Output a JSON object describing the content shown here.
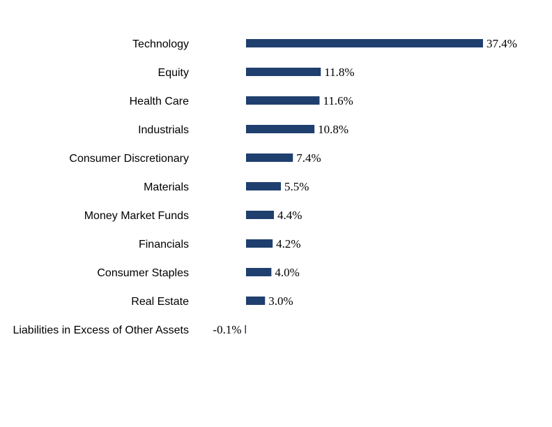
{
  "chart_data": {
    "type": "bar",
    "orientation": "horizontal",
    "categories": [
      "Technology",
      "Equity",
      "Health Care",
      "Industrials",
      "Consumer Discretionary",
      "Materials",
      "Money Market Funds",
      "Financials",
      "Consumer Staples",
      "Real Estate",
      "Liabilities in Excess of Other Assets"
    ],
    "values": [
      37.4,
      11.8,
      11.6,
      10.8,
      7.4,
      5.5,
      4.4,
      4.2,
      4.0,
      3.0,
      -0.1
    ],
    "value_labels": [
      "37.4%",
      "11.8%",
      "11.6%",
      "10.8%",
      "7.4%",
      "5.5%",
      "4.4%",
      "4.2%",
      "4.0%",
      "3.0%",
      "-0.1%"
    ],
    "bar_color": "#1f3f6e",
    "xlim": [
      0,
      37.4
    ],
    "grid": false,
    "legend": "none"
  }
}
